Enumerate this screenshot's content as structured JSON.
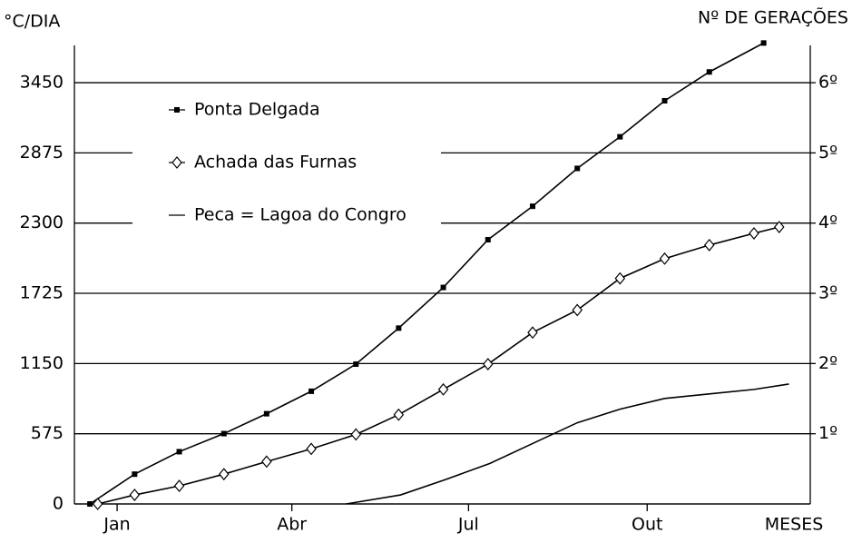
{
  "chart_data": {
    "type": "line",
    "y_label": "°C/DIA",
    "y2_label": "Nº DE GERAÇÕES",
    "x_label": "MESES",
    "xlim": [
      -7,
      372
    ],
    "xticks": [
      {
        "value": 15,
        "label": "Jan"
      },
      {
        "value": 105,
        "label": "Abr"
      },
      {
        "value": 196,
        "label": "Jul"
      },
      {
        "value": 288,
        "label": "Out"
      }
    ],
    "ylim": [
      0,
      3800
    ],
    "yticks": [
      0,
      575,
      1150,
      1725,
      2300,
      2875,
      3450
    ],
    "y2lim": [
      0,
      6.6087
    ],
    "y2ticks": [
      {
        "value": 1,
        "label": "1º"
      },
      {
        "value": 2,
        "label": "2º"
      },
      {
        "value": 3,
        "label": "3º"
      },
      {
        "value": 4,
        "label": "4º"
      },
      {
        "value": 5,
        "label": "5º"
      },
      {
        "value": 6,
        "label": "6º"
      }
    ],
    "grid": true,
    "legend": "upper left",
    "series": [
      {
        "name": "Ponta Delgada",
        "color": "#000000",
        "marker": "square",
        "x": [
          1,
          24,
          47,
          70,
          92,
          115,
          138,
          160,
          183,
          206,
          229,
          252,
          274,
          297,
          320,
          348
        ],
        "values": [
          0,
          244,
          428,
          576,
          739,
          923,
          1145,
          1440,
          1773,
          2164,
          2438,
          2748,
          3007,
          3302,
          3538,
          3775
        ]
      },
      {
        "name": "Achada das Furnas",
        "color": "#000000",
        "marker": "diamond",
        "x": [
          5,
          24,
          47,
          70,
          92,
          115,
          138,
          160,
          183,
          206,
          229,
          252,
          274,
          297,
          320,
          343,
          356
        ],
        "values": [
          0,
          74,
          148,
          244,
          347,
          451,
          569,
          731,
          938,
          1145,
          1404,
          1588,
          1847,
          2009,
          2120,
          2216,
          2268
        ]
      },
      {
        "name": "Peca = Lagoa do Congro",
        "color": "#000000",
        "marker": "none",
        "x": [
          133,
          161,
          184,
          207,
          229,
          252,
          274,
          297,
          320,
          343,
          361
        ],
        "values": [
          0,
          74,
          199,
          332,
          495,
          665,
          776,
          864,
          901,
          938,
          982
        ]
      }
    ]
  }
}
